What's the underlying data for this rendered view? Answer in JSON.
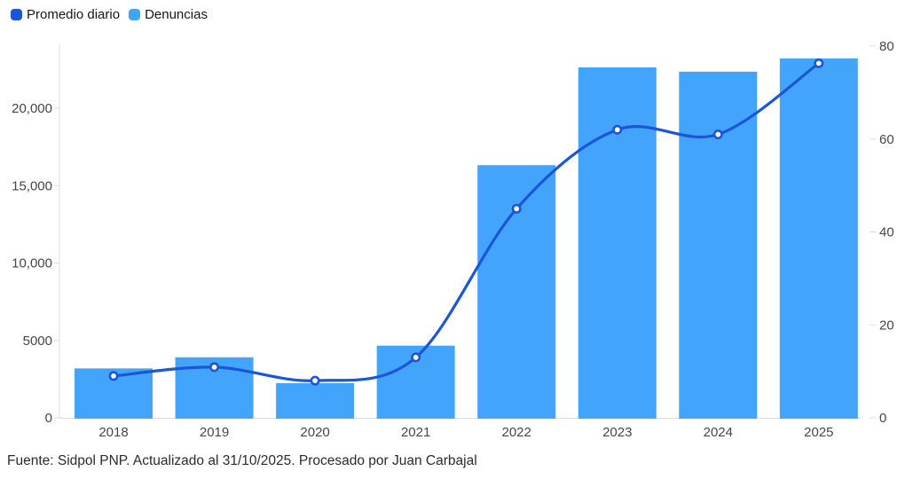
{
  "legend": {
    "items": [
      {
        "label": "Promedio diario",
        "color": "#1b55d9"
      },
      {
        "label": "Denuncias",
        "color": "#42a5fb"
      }
    ]
  },
  "footer": {
    "source_note": "Fuente: Sidpol PNP. Actualizado al 31/10/2025. Procesado por Juan Carbajal"
  },
  "colors": {
    "bar": "#42a5fb",
    "line": "#1b55d9",
    "axis": "#dcdcdc",
    "tick_text": "#464646",
    "point_fill": "#ffffff"
  },
  "chart_data": {
    "type": "bar",
    "subtype": "combo-bar-line-dual-axis",
    "categories": [
      "2018",
      "2019",
      "2020",
      "2021",
      "2022",
      "2023",
      "2024",
      "2025"
    ],
    "series": [
      {
        "name": "Denuncias",
        "type": "bar",
        "axis": "left",
        "color": "#42a5fb",
        "values": [
          3190,
          3910,
          2240,
          4660,
          16320,
          22640,
          22360,
          23220
        ]
      },
      {
        "name": "Promedio diario",
        "type": "line",
        "axis": "right",
        "color": "#1b55d9",
        "values": [
          9,
          10.9,
          8,
          13,
          45,
          62,
          61,
          76.3
        ]
      }
    ],
    "left_axis": {
      "ticks": [
        "0",
        "5000",
        "10,000",
        "15,000",
        "20,000"
      ],
      "tick_values": [
        0,
        5000,
        10000,
        15000,
        20000
      ],
      "range": [
        0,
        23250
      ]
    },
    "right_axis": {
      "ticks": [
        "0",
        "20",
        "40",
        "60",
        "80"
      ],
      "tick_values": [
        0,
        20,
        40,
        60,
        80
      ],
      "range": [
        0,
        80
      ]
    },
    "title": "",
    "xlabel": "",
    "ylabel": "",
    "grid": "off",
    "legend_position": "top-left"
  }
}
